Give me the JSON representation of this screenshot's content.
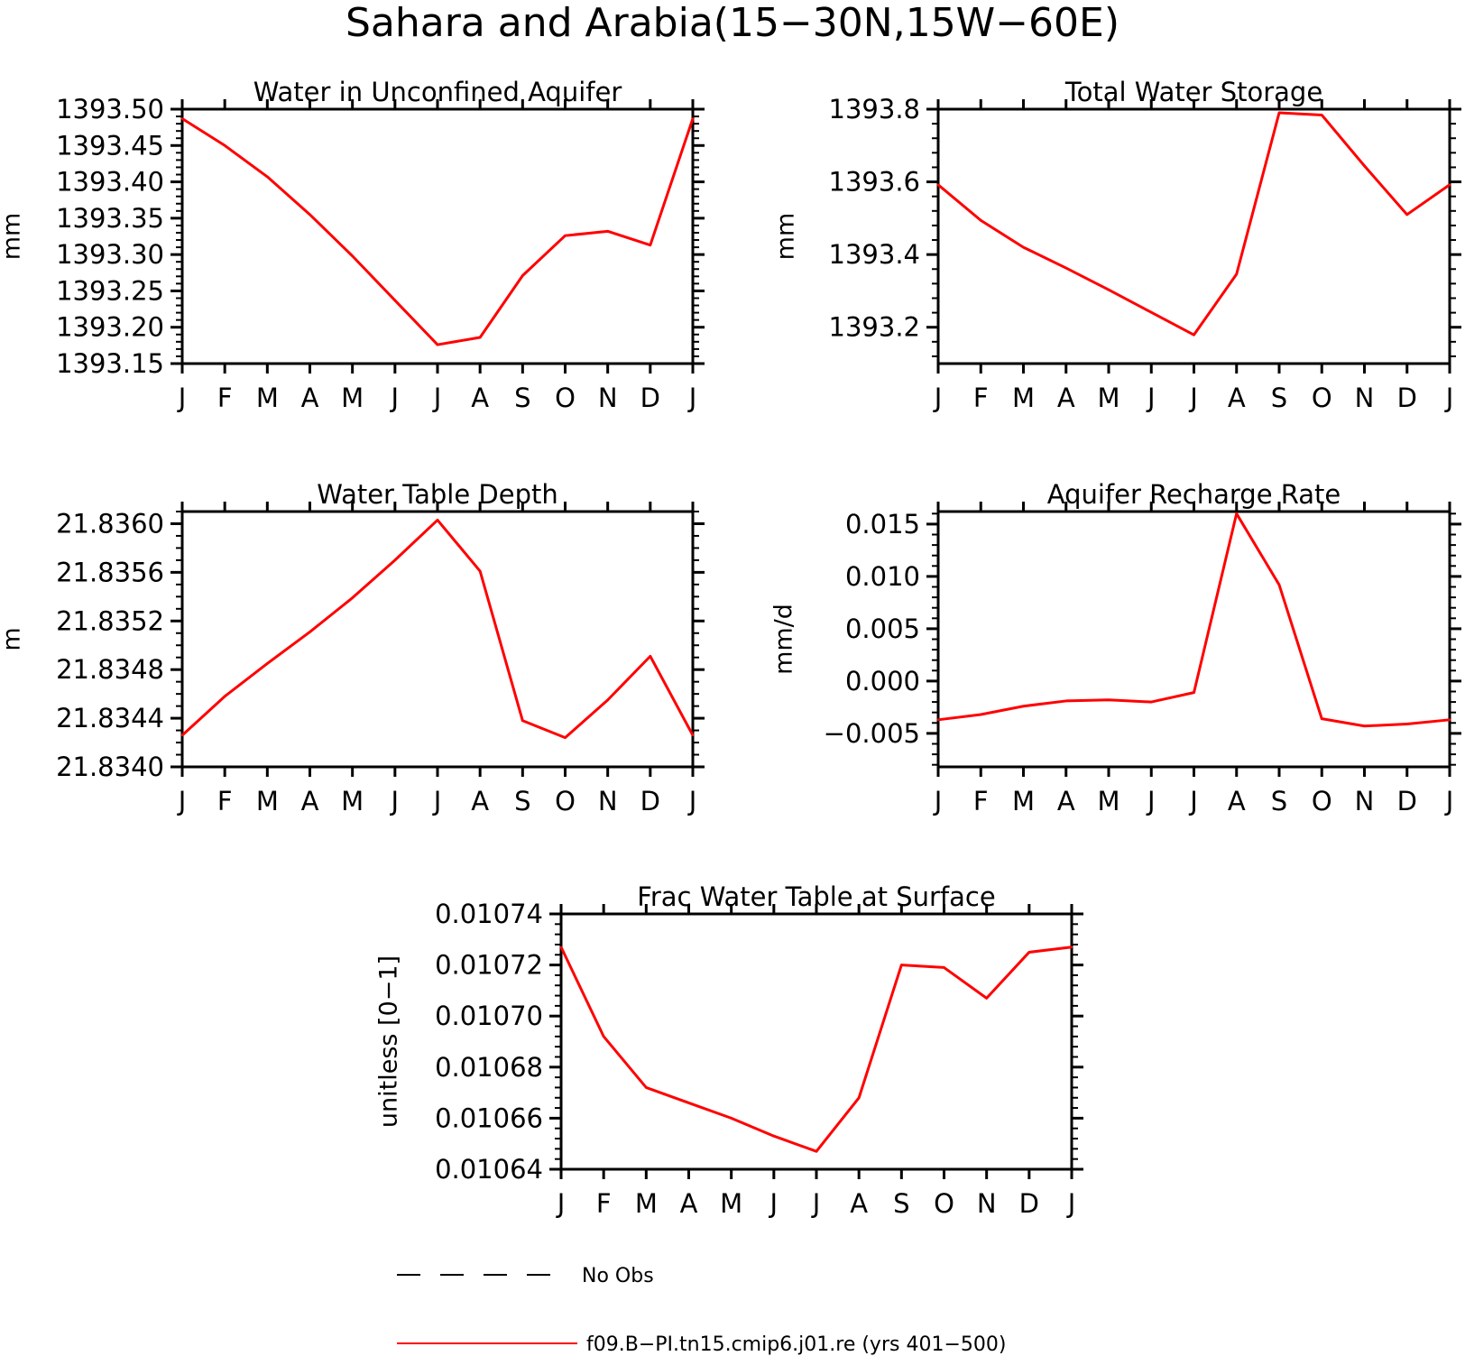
{
  "figure": {
    "title": "Sahara and Arabia(15−30N,15W−60E)"
  },
  "legend": {
    "items": [
      {
        "label": "No Obs",
        "color": "#000000",
        "dashed": true
      },
      {
        "label": "f09.B−PI.tn15.cmip6.j01.re (yrs 401−500)",
        "color": "#ff0000",
        "dashed": false
      }
    ]
  },
  "chart_data": [
    {
      "type": "line",
      "title": "Water in Unconfined Aquifer",
      "ylabel": "mm",
      "xlabel": "",
      "x": [
        "J",
        "F",
        "M",
        "A",
        "M",
        "J",
        "J",
        "A",
        "S",
        "O",
        "N",
        "D",
        "J"
      ],
      "ylim": [
        1393.15,
        1393.5
      ],
      "yticks": [
        "1393.50",
        "1393.45",
        "1393.40",
        "1393.35",
        "1393.30",
        "1393.25",
        "1393.20",
        "1393.15"
      ],
      "series": [
        {
          "color": "#ff0000",
          "values": [
            1393.487,
            1393.45,
            1393.407,
            1393.355,
            1393.298,
            1393.237,
            1393.176,
            1393.186,
            1393.271,
            1393.326,
            1393.332,
            1393.313,
            1393.487
          ]
        }
      ]
    },
    {
      "type": "line",
      "title": "Total Water Storage",
      "ylabel": "mm",
      "xlabel": "",
      "x": [
        "J",
        "F",
        "M",
        "A",
        "M",
        "J",
        "J",
        "A",
        "S",
        "O",
        "N",
        "D",
        "J"
      ],
      "ylim": [
        1393.1,
        1393.8
      ],
      "yticks": [
        "1393.8",
        "1393.6",
        "1393.4",
        "1393.2"
      ],
      "series": [
        {
          "color": "#ff0000",
          "values": [
            1393.592,
            1393.494,
            1393.42,
            1393.363,
            1393.303,
            1393.241,
            1393.179,
            1393.346,
            1393.79,
            1393.784,
            1393.644,
            1393.51,
            1393.592
          ]
        }
      ]
    },
    {
      "type": "line",
      "title": "Water Table Depth",
      "ylabel": "m",
      "xlabel": "",
      "x": [
        "J",
        "F",
        "M",
        "A",
        "M",
        "J",
        "J",
        "A",
        "S",
        "O",
        "N",
        "D",
        "J"
      ],
      "ylim": [
        21.834,
        21.8361
      ],
      "yticks": [
        "21.8360",
        "21.8356",
        "21.8352",
        "21.8348",
        "21.8344",
        "21.8340"
      ],
      "series": [
        {
          "color": "#ff0000",
          "values": [
            21.83426,
            21.83458,
            21.83485,
            21.83511,
            21.83539,
            21.8357,
            21.83603,
            21.83561,
            21.83438,
            21.83424,
            21.83455,
            21.83491,
            21.83426
          ]
        }
      ]
    },
    {
      "type": "line",
      "title": "Aquifer Recharge Rate",
      "ylabel": "mm/d",
      "xlabel": "",
      "x": [
        "J",
        "F",
        "M",
        "A",
        "M",
        "J",
        "J",
        "A",
        "S",
        "O",
        "N",
        "D",
        "J"
      ],
      "ylim": [
        -0.0082,
        0.0162
      ],
      "yticks": [
        "0.015",
        "0.010",
        "0.005",
        "0.000",
        "−0.005"
      ],
      "series": [
        {
          "color": "#ff0000",
          "values": [
            -0.0037,
            -0.0032,
            -0.0024,
            -0.0019,
            -0.0018,
            -0.002,
            -0.0011,
            0.016,
            0.0092,
            -0.0036,
            -0.0043,
            -0.0041,
            -0.0037
          ]
        }
      ]
    },
    {
      "type": "line",
      "title": "Frac Water Table at Surface",
      "ylabel": "unitless [0−1]",
      "xlabel": "",
      "x": [
        "J",
        "F",
        "M",
        "A",
        "M",
        "J",
        "J",
        "A",
        "S",
        "O",
        "N",
        "D",
        "J"
      ],
      "ylim": [
        0.01064,
        0.01074
      ],
      "yticks": [
        "0.01074",
        "0.01072",
        "0.01070",
        "0.01068",
        "0.01066",
        "0.01064"
      ],
      "series": [
        {
          "color": "#ff0000",
          "values": [
            0.010727,
            0.010692,
            0.010672,
            0.010666,
            0.01066,
            0.010653,
            0.010647,
            0.010668,
            0.01072,
            0.010719,
            0.010707,
            0.010725,
            0.010727
          ]
        }
      ]
    }
  ]
}
